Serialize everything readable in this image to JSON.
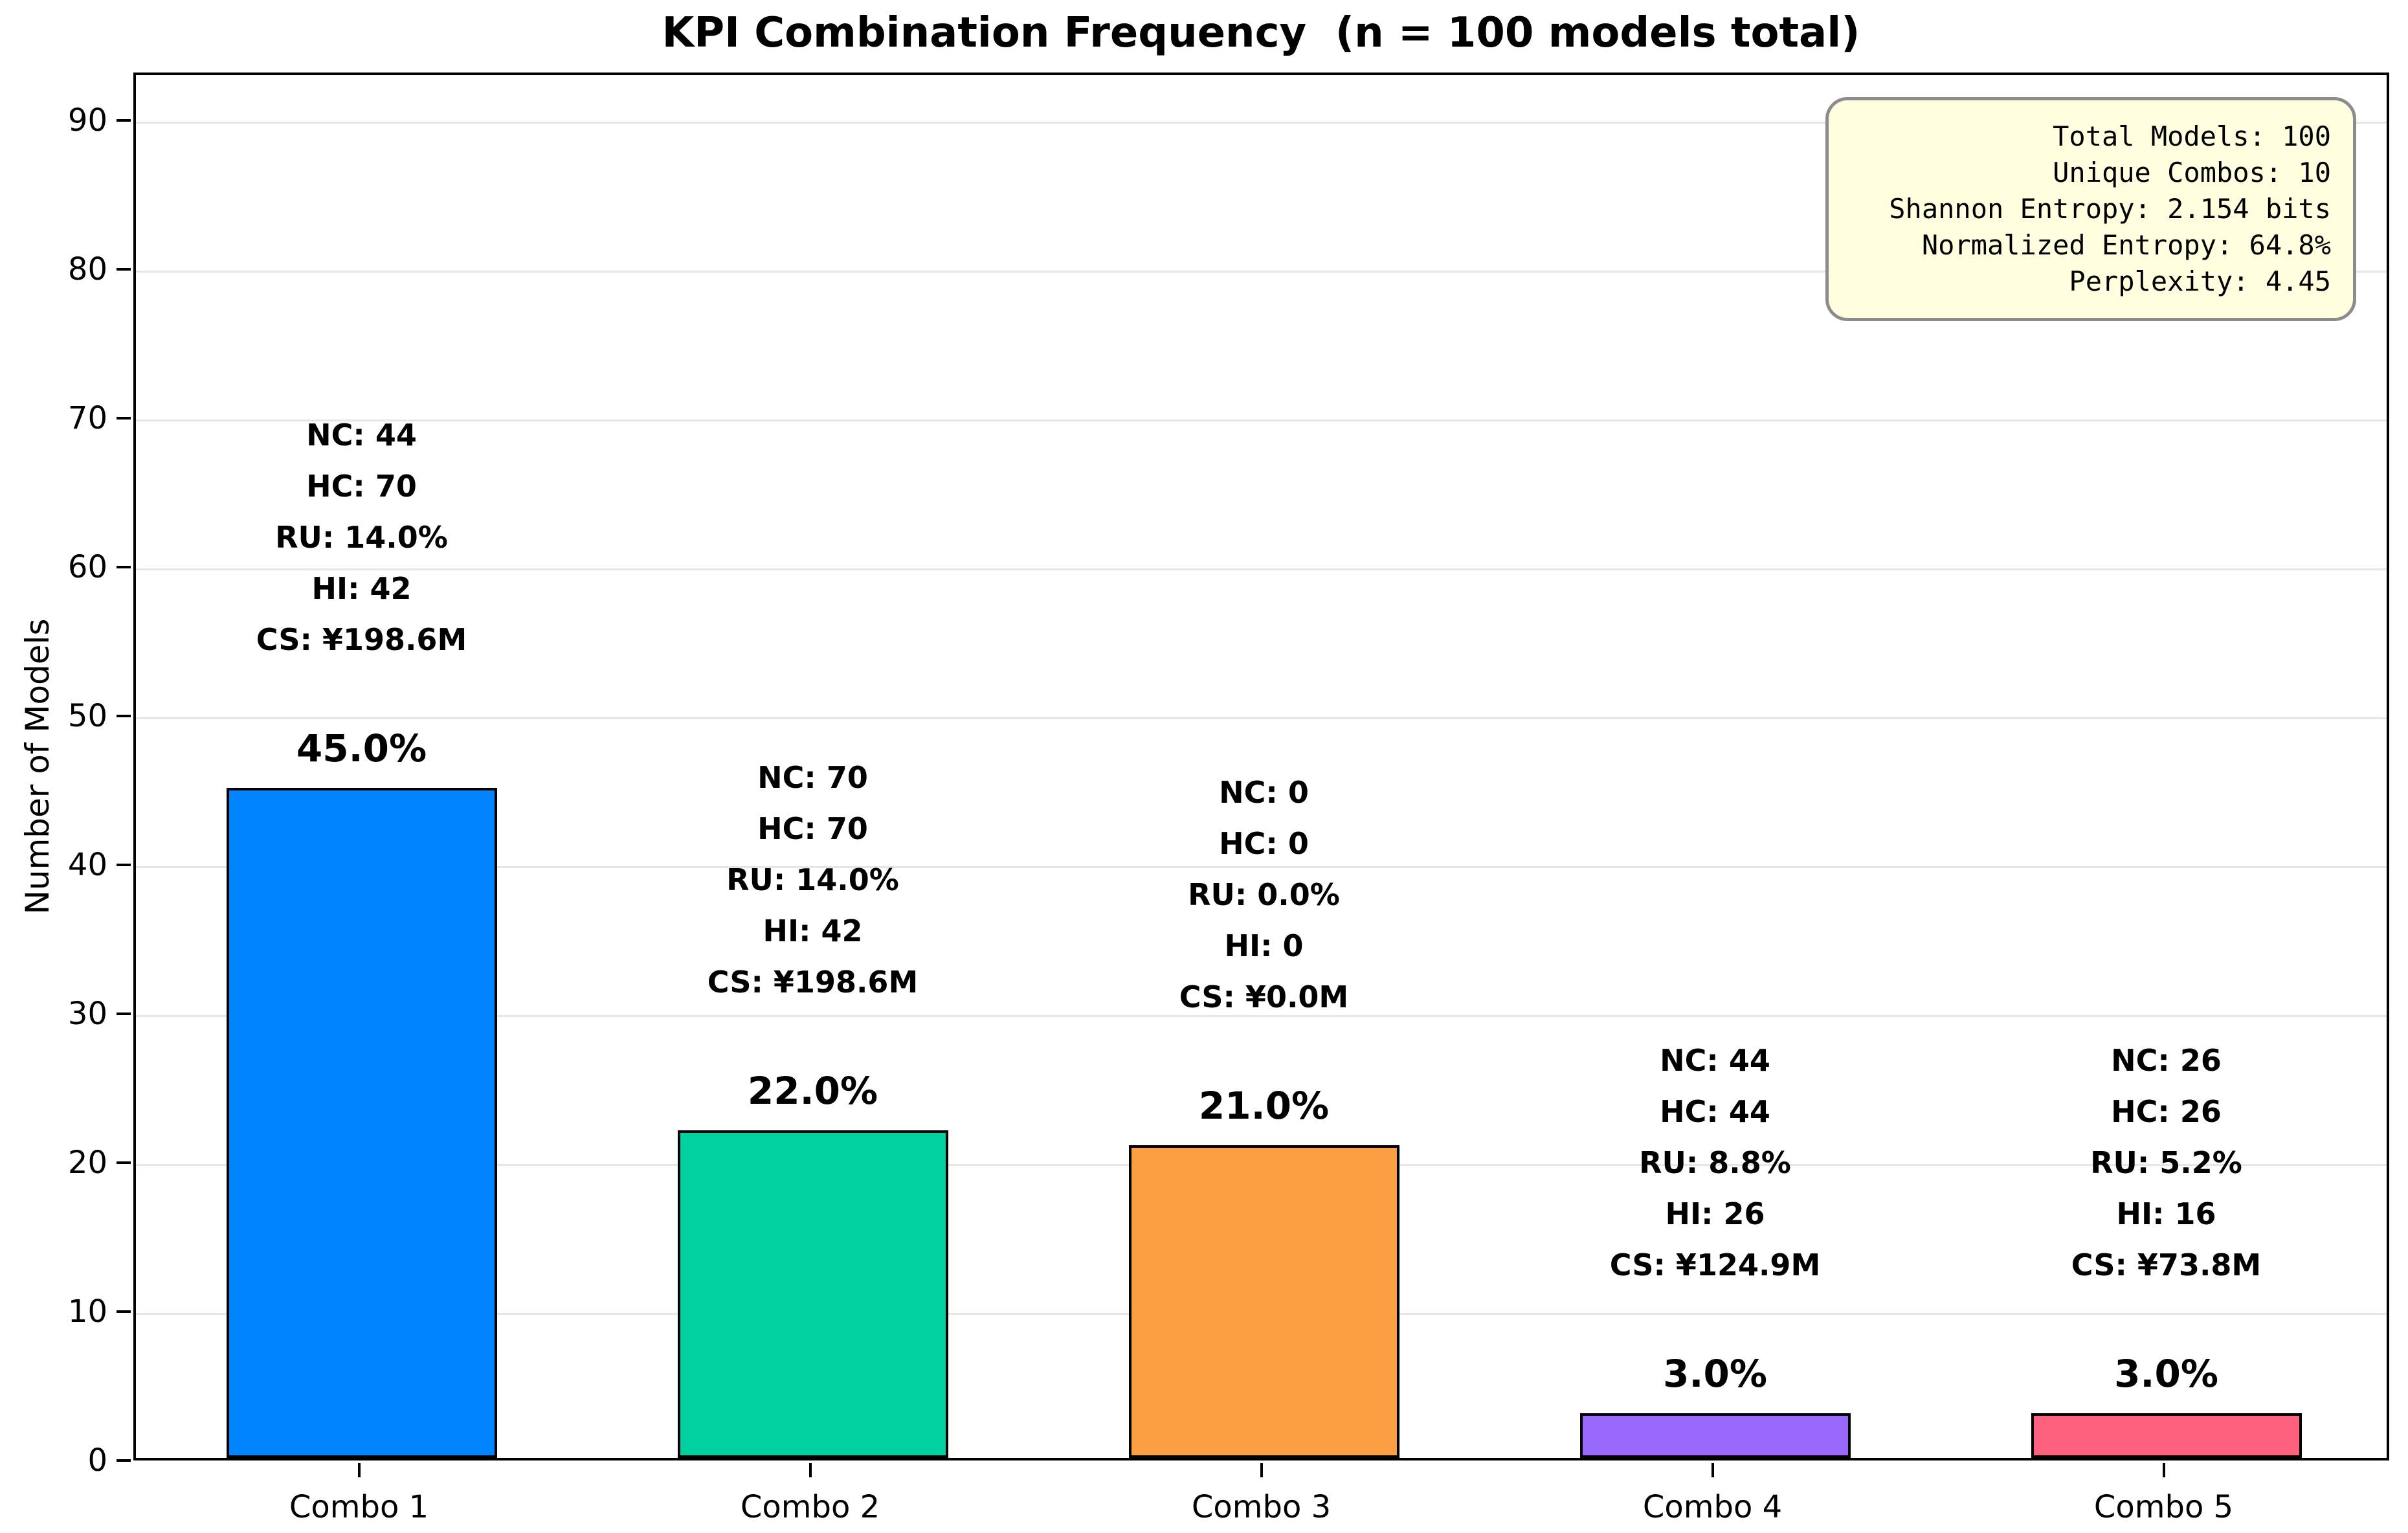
{
  "title": "KPI Combination Frequency  (n = 100 models total)",
  "stats_box": {
    "lines": [
      "Total Models: 100",
      "Unique Combos: 10",
      "Shannon Entropy: 2.154 bits",
      "Normalized Entropy: 64.8%",
      "Perplexity: 4.45"
    ],
    "bg_color": "#FFFFE0",
    "border_color": "#8C8C8C"
  },
  "chart_data": {
    "type": "bar",
    "title": "KPI Combination Frequency  (n = 100 models total)",
    "xlabel": "",
    "ylabel": "Number of Models",
    "categories": [
      "Combo 1",
      "Combo 2",
      "Combo 3",
      "Combo 4",
      "Combo 5"
    ],
    "values": [
      45,
      22,
      21,
      3,
      3
    ],
    "percent_labels": [
      "45.0%",
      "22.0%",
      "21.0%",
      "3.0%",
      "3.0%"
    ],
    "bar_colors": [
      "#0084FF",
      "#00D1A1",
      "#FC9F43",
      "#9A67FC",
      "#FC617D"
    ],
    "bar_edge_color": "#000000",
    "annotations": [
      [
        "NC: 44",
        "HC: 70",
        "RU: 14.0%",
        "HI: 42",
        "CS: ¥198.6M"
      ],
      [
        "NC: 70",
        "HC: 70",
        "RU: 14.0%",
        "HI: 42",
        "CS: ¥198.6M"
      ],
      [
        "NC: 0",
        "HC: 0",
        "RU: 0.0%",
        "HI: 0",
        "CS: ¥0.0M"
      ],
      [
        "NC: 44",
        "HC: 44",
        "RU: 8.8%",
        "HI: 26",
        "CS: ¥124.9M"
      ],
      [
        "NC: 26",
        "HC: 26",
        "RU: 5.2%",
        "HI: 16",
        "CS: ¥73.8M"
      ]
    ],
    "yticks": [
      0,
      10,
      20,
      30,
      40,
      50,
      60,
      70,
      80,
      90
    ],
    "ylim": [
      0,
      93.2
    ],
    "grid": "horizontal-only",
    "gridline_color": "#E6E6E6",
    "legend_position": "none"
  }
}
